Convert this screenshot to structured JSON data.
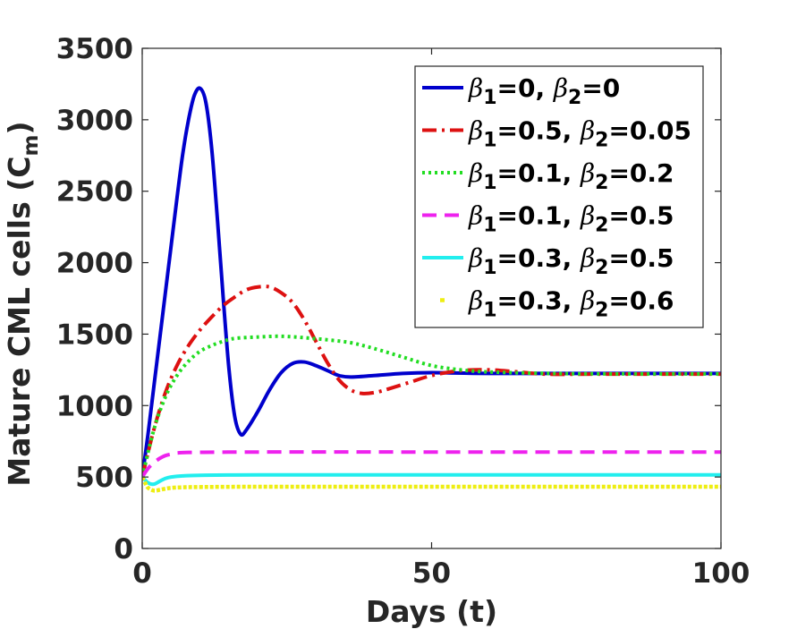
{
  "chart_data": {
    "type": "line",
    "xlabel": "Days (t)",
    "ylabel": "Mature CML cells (C",
    "ylabel_sub": "m",
    "ylabel_close": ")",
    "xlim": [
      0,
      100
    ],
    "ylim": [
      0,
      3500
    ],
    "xticks": [
      0,
      50,
      100
    ],
    "yticks": [
      0,
      500,
      1000,
      1500,
      2000,
      2500,
      3000,
      3500
    ],
    "grid": false,
    "legend_position": "top-right",
    "series": [
      {
        "name": "β1=0, β2=0",
        "label": {
          "p1": "β",
          "s1": "1",
          "v1": "=0, ",
          "p2": "β",
          "s2": "2",
          "v2": "=0"
        },
        "color": "#0000cc",
        "dash": "solid",
        "points": [
          [
            0,
            500
          ],
          [
            1,
            800
          ],
          [
            2,
            1130
          ],
          [
            3,
            1460
          ],
          [
            4,
            1790
          ],
          [
            5,
            2120
          ],
          [
            6,
            2450
          ],
          [
            7,
            2760
          ],
          [
            8,
            3000
          ],
          [
            9,
            3170
          ],
          [
            10,
            3220
          ],
          [
            11,
            3120
          ],
          [
            12,
            2800
          ],
          [
            13,
            2300
          ],
          [
            14,
            1750
          ],
          [
            15,
            1250
          ],
          [
            16,
            920
          ],
          [
            17,
            800
          ],
          [
            18,
            830
          ],
          [
            20,
            960
          ],
          [
            22,
            1110
          ],
          [
            24,
            1230
          ],
          [
            26,
            1295
          ],
          [
            28,
            1305
          ],
          [
            30,
            1280
          ],
          [
            32,
            1245
          ],
          [
            34,
            1210
          ],
          [
            36,
            1200
          ],
          [
            40,
            1210
          ],
          [
            45,
            1225
          ],
          [
            50,
            1230
          ],
          [
            60,
            1225
          ],
          [
            80,
            1225
          ],
          [
            100,
            1225
          ]
        ]
      },
      {
        "name": "β1=0.5, β2=0.05",
        "label": {
          "p1": "β",
          "s1": "1",
          "v1": "=0.5, ",
          "p2": "β",
          "s2": "2",
          "v2": "=0.05"
        },
        "color": "#dd1111",
        "dash": "dashdot",
        "points": [
          [
            0,
            500
          ],
          [
            2,
            830
          ],
          [
            4,
            1090
          ],
          [
            6,
            1280
          ],
          [
            8,
            1420
          ],
          [
            10,
            1530
          ],
          [
            12,
            1620
          ],
          [
            14,
            1700
          ],
          [
            16,
            1760
          ],
          [
            18,
            1810
          ],
          [
            20,
            1830
          ],
          [
            22,
            1830
          ],
          [
            24,
            1790
          ],
          [
            26,
            1720
          ],
          [
            28,
            1600
          ],
          [
            30,
            1450
          ],
          [
            32,
            1300
          ],
          [
            34,
            1180
          ],
          [
            36,
            1110
          ],
          [
            38,
            1085
          ],
          [
            40,
            1090
          ],
          [
            42,
            1110
          ],
          [
            46,
            1160
          ],
          [
            50,
            1210
          ],
          [
            55,
            1245
          ],
          [
            60,
            1250
          ],
          [
            65,
            1235
          ],
          [
            70,
            1220
          ],
          [
            80,
            1220
          ],
          [
            100,
            1220
          ]
        ]
      },
      {
        "name": "β1=0.1, β2=0.2",
        "label": {
          "p1": "β",
          "s1": "1",
          "v1": "=0.1, ",
          "p2": "β",
          "s2": "2",
          "v2": "=0.2"
        },
        "color": "#22dd22",
        "dash": "dotted",
        "points": [
          [
            0,
            500
          ],
          [
            2,
            830
          ],
          [
            4,
            1060
          ],
          [
            6,
            1210
          ],
          [
            8,
            1310
          ],
          [
            10,
            1380
          ],
          [
            12,
            1420
          ],
          [
            14,
            1450
          ],
          [
            16,
            1470
          ],
          [
            20,
            1480
          ],
          [
            24,
            1485
          ],
          [
            28,
            1475
          ],
          [
            32,
            1460
          ],
          [
            36,
            1440
          ],
          [
            40,
            1400
          ],
          [
            45,
            1340
          ],
          [
            50,
            1280
          ],
          [
            55,
            1250
          ],
          [
            60,
            1235
          ],
          [
            70,
            1225
          ],
          [
            80,
            1222
          ],
          [
            100,
            1222
          ]
        ]
      },
      {
        "name": "β1=0.1, β2=0.5",
        "label": {
          "p1": "β",
          "s1": "1",
          "v1": "=0.1, ",
          "p2": "β",
          "s2": "2",
          "v2": "=0.5"
        },
        "color": "#ee22ee",
        "dash": "dashed",
        "points": [
          [
            0,
            500
          ],
          [
            1,
            560
          ],
          [
            2,
            600
          ],
          [
            3,
            630
          ],
          [
            4,
            650
          ],
          [
            5,
            660
          ],
          [
            6,
            668
          ],
          [
            8,
            672
          ],
          [
            10,
            673
          ],
          [
            20,
            675
          ],
          [
            50,
            675
          ],
          [
            100,
            675
          ]
        ]
      },
      {
        "name": "β1=0.3, β2=0.5",
        "label": {
          "p1": "β",
          "s1": "1",
          "v1": "=0.3, ",
          "p2": "β",
          "s2": "2",
          "v2": "=0.5"
        },
        "color": "#22eeee",
        "dash": "solid",
        "points": [
          [
            0,
            500
          ],
          [
            1,
            460
          ],
          [
            2,
            450
          ],
          [
            3,
            470
          ],
          [
            4,
            490
          ],
          [
            5,
            500
          ],
          [
            7,
            508
          ],
          [
            10,
            512
          ],
          [
            20,
            515
          ],
          [
            50,
            515
          ],
          [
            100,
            515
          ]
        ]
      },
      {
        "name": "β1=0.3, β2=0.6",
        "label": {
          "p1": "β",
          "s1": "1",
          "v1": "=0.3, ",
          "p2": "β",
          "s2": "2",
          "v2": "=0.6"
        },
        "color": "#eeee11",
        "dash": "dotted-heavy",
        "points": [
          [
            0,
            500
          ],
          [
            0.5,
            460
          ],
          [
            1,
            425
          ],
          [
            2,
            405
          ],
          [
            3,
            410
          ],
          [
            4,
            418
          ],
          [
            5,
            424
          ],
          [
            7,
            428
          ],
          [
            10,
            430
          ],
          [
            20,
            432
          ],
          [
            50,
            432
          ],
          [
            100,
            432
          ]
        ]
      }
    ]
  }
}
